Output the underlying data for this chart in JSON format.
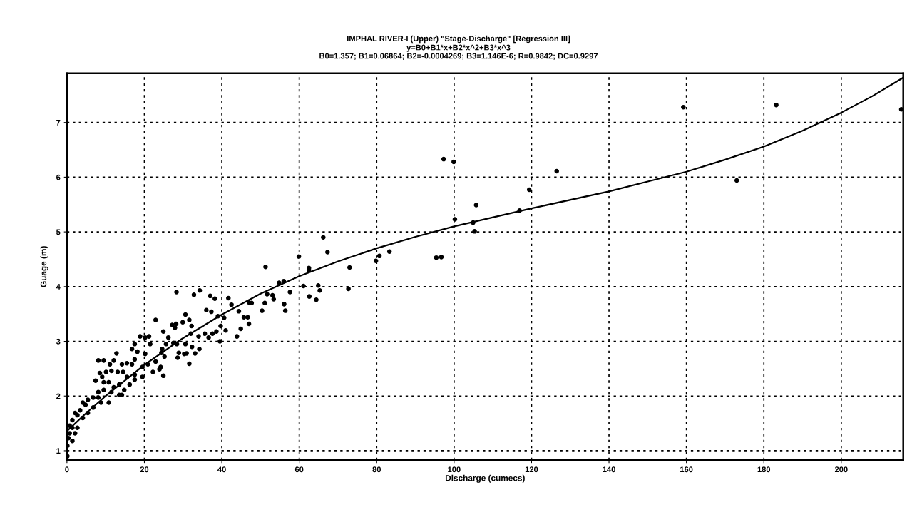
{
  "chart_data": {
    "type": "scatter",
    "title": "IMPHAL RIVER-I (Upper) \"Stage-Discharge\" [Regression III]",
    "subtitle": "y=B0+B1*x+B2*x^2+B3*x^3\nB0=1.357; B1=0.06864; B2=-0.0004269; B3=1.146E-6; R=0.9842; DC=0.9297",
    "xlabel": "Discharge (cumecs)",
    "ylabel": "Guage (m)",
    "xlim": [
      0,
      216
    ],
    "ylim": [
      0.83,
      7.9
    ],
    "xticks": [
      0,
      20,
      40,
      60,
      80,
      100,
      120,
      140,
      160,
      180,
      200
    ],
    "yticks": [
      1,
      2,
      3,
      4,
      5,
      6,
      7
    ],
    "grid": true,
    "legend": false,
    "series": [
      {
        "color": "#000000",
        "marker": "circle",
        "x": [
          215.5,
          183.2,
          159.2,
          173.0,
          126.5,
          119.4,
          116.9,
          105.7,
          104.9,
          105.3,
          100.2,
          97.3,
          99.9,
          95.4,
          96.7,
          83.3,
          80.7,
          79.8,
          73.0,
          72.7,
          67.3,
          66.2,
          59.9,
          62.5,
          62.5,
          61.1,
          62.6,
          64.4,
          64.9,
          65.3,
          57.6,
          56.1,
          56.4,
          51.3,
          54.8,
          56.0,
          53.4,
          53.1,
          51.7,
          51.1,
          50.4,
          47.0,
          47.7,
          46.7,
          47.0,
          44.4,
          44.9,
          43.9,
          42.5,
          41.7,
          41.0,
          39.5,
          39.7,
          39.0,
          40.6,
          45.7,
          38.2,
          37.0,
          36.0,
          37.3,
          38.6,
          37.6,
          36.6,
          35.6,
          34.0,
          34.2,
          32.3,
          33.1,
          31.6,
          30.9,
          30.3,
          28.9,
          28.6,
          28.4,
          30.6,
          32.0,
          31.6,
          32.2,
          30.6,
          29.9,
          28.2,
          27.9,
          27.2,
          27.5,
          26.2,
          25.6,
          24.9,
          24.6,
          25.2,
          24.4,
          24.9,
          23.9,
          22.9,
          21.2,
          21.5,
          20.2,
          18.9,
          17.5,
          16.8,
          18.2,
          17.5,
          16.8,
          15.5,
          14.2,
          12.8,
          12.1,
          11.1,
          9.5,
          8.1,
          8.5,
          9.1,
          10.1,
          11.5,
          13.1,
          14.5,
          15.5,
          17.5,
          19.5,
          20.9,
          22.2,
          24.2,
          22.9,
          20.2,
          13.5,
          12.1,
          10.8,
          9.5,
          8.1,
          7.4,
          8.1,
          6.8,
          5.4,
          4.8,
          4.1,
          3.4,
          4.1,
          2.7,
          2.1,
          1.4,
          1.4,
          0.7,
          0.7,
          0.4,
          0.1,
          0.1,
          2.7,
          2.1,
          1.4,
          5.4,
          6.8,
          8.8,
          10.8,
          11.5,
          13.5,
          14.8,
          16.2,
          17.5,
          19.5,
          9.5,
          14.2,
          28.3,
          32.8,
          34.3
        ],
        "values": [
          7.24,
          7.32,
          7.28,
          5.94,
          6.11,
          5.77,
          5.39,
          5.49,
          5.17,
          5.01,
          5.23,
          6.33,
          6.28,
          4.53,
          4.54,
          4.64,
          4.56,
          4.47,
          4.35,
          3.96,
          4.63,
          4.9,
          4.55,
          4.34,
          4.3,
          4.01,
          3.82,
          3.76,
          4.02,
          3.93,
          3.9,
          3.68,
          3.56,
          4.36,
          4.07,
          4.1,
          3.77,
          3.84,
          3.86,
          3.7,
          3.56,
          3.71,
          3.7,
          3.44,
          3.32,
          3.55,
          3.23,
          3.09,
          3.67,
          3.79,
          3.2,
          3.0,
          3.28,
          3.46,
          3.43,
          3.44,
          3.78,
          3.83,
          3.57,
          3.54,
          3.18,
          3.14,
          3.07,
          3.14,
          3.09,
          2.86,
          2.9,
          2.78,
          2.59,
          2.78,
          2.77,
          2.79,
          2.7,
          2.95,
          2.95,
          3.14,
          3.39,
          3.28,
          3.49,
          3.35,
          3.32,
          3.25,
          3.3,
          2.97,
          3.07,
          2.95,
          3.18,
          2.86,
          2.72,
          2.79,
          2.37,
          2.49,
          3.39,
          3.09,
          2.95,
          3.07,
          3.09,
          2.95,
          2.86,
          2.81,
          2.67,
          2.58,
          2.6,
          2.58,
          2.78,
          2.65,
          2.58,
          2.65,
          2.65,
          2.42,
          2.35,
          2.44,
          2.46,
          2.44,
          2.44,
          2.35,
          2.39,
          2.53,
          2.58,
          2.44,
          2.53,
          2.63,
          2.77,
          2.21,
          2.16,
          2.25,
          2.11,
          2.07,
          2.28,
          1.97,
          1.97,
          1.93,
          1.84,
          1.88,
          1.74,
          1.6,
          1.65,
          1.69,
          1.56,
          1.42,
          1.32,
          1.46,
          1.23,
          1.09,
          0.9,
          1.42,
          1.32,
          1.18,
          1.69,
          1.79,
          1.88,
          1.88,
          2.07,
          2.02,
          2.11,
          2.21,
          2.3,
          2.35,
          2.25,
          2.02,
          3.9,
          3.85,
          3.93
        ]
      },
      {
        "type": "line",
        "color": "#000000",
        "marker": "none",
        "line_style": "solid",
        "x": [
          0,
          5,
          10,
          20,
          30,
          40,
          50,
          60,
          70,
          80,
          90,
          100,
          120,
          140,
          150,
          160,
          170,
          180,
          190,
          200,
          208,
          216
        ],
        "values": [
          1.36,
          1.69,
          2.0,
          2.57,
          3.06,
          3.49,
          3.87,
          4.19,
          4.46,
          4.7,
          4.91,
          5.1,
          5.43,
          5.74,
          5.92,
          6.1,
          6.32,
          6.56,
          6.85,
          7.18,
          7.48,
          7.82
        ]
      }
    ]
  }
}
